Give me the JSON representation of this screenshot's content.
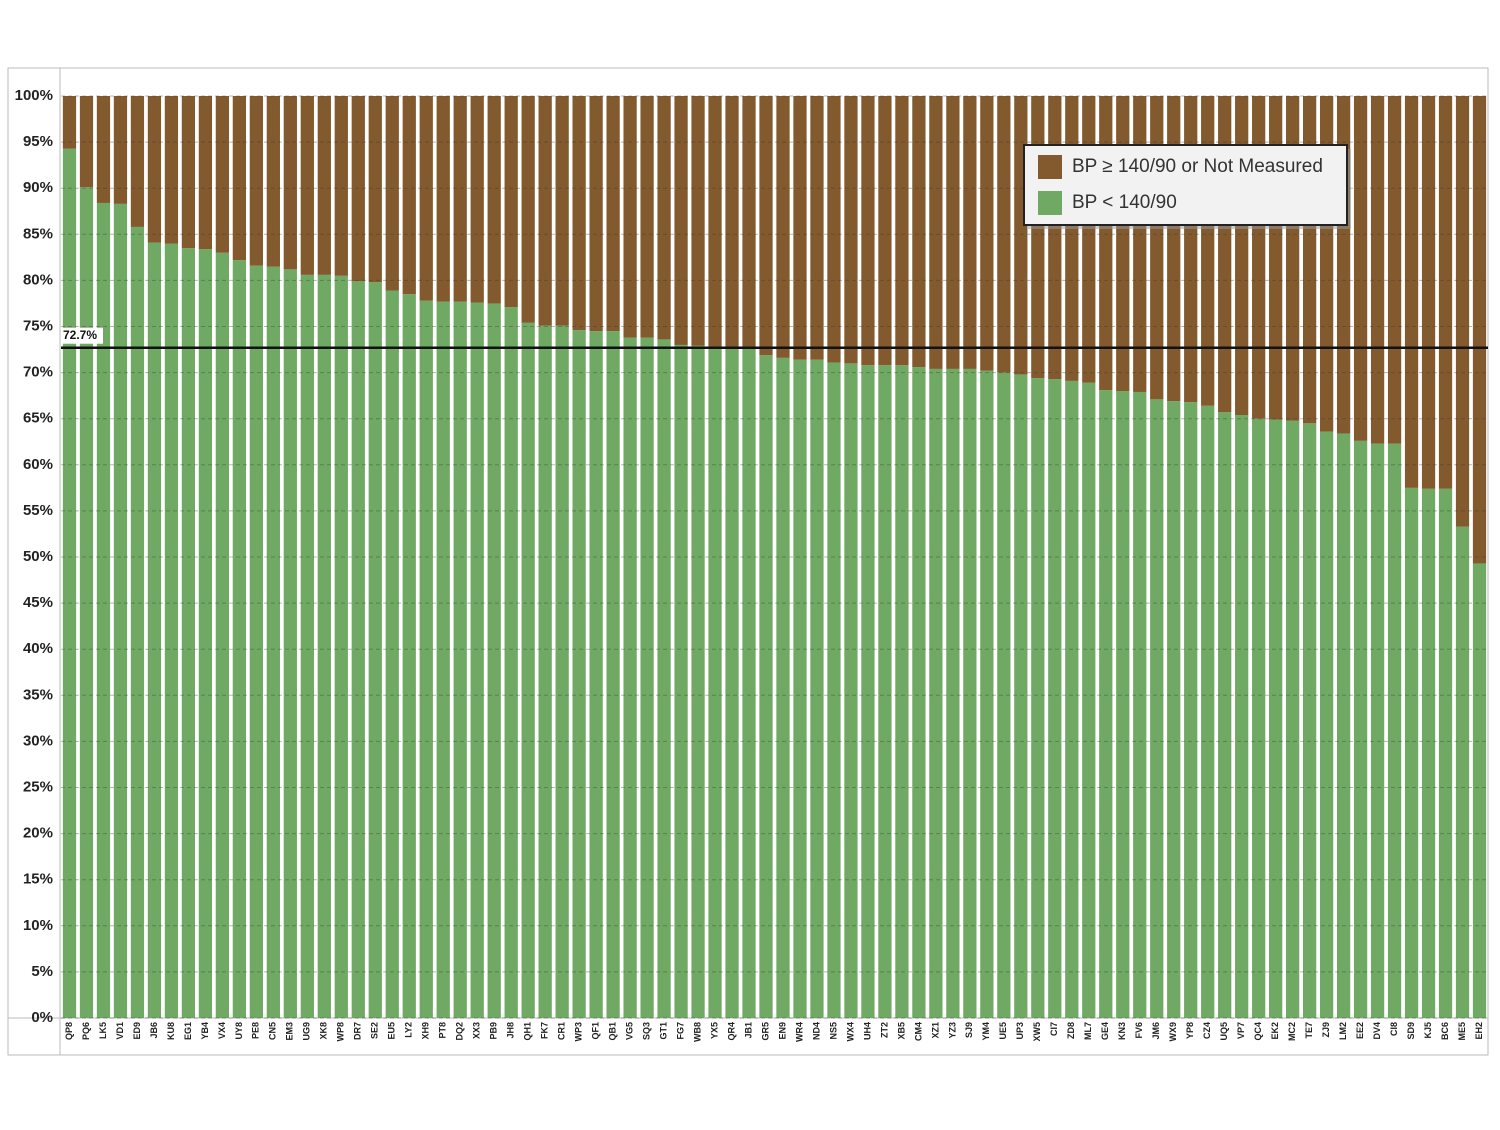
{
  "chart_data": {
    "type": "stacked_bar",
    "categories": [
      "QP8",
      "PQ6",
      "LK5",
      "VD1",
      "ED9",
      "JB6",
      "KU8",
      "EG1",
      "YB4",
      "VX4",
      "UY8",
      "PE8",
      "CN5",
      "EM3",
      "UG9",
      "XK8",
      "WP8",
      "DR7",
      "SE2",
      "EU5",
      "LY2",
      "XH9",
      "PT8",
      "DQ2",
      "XX3",
      "PB9",
      "JH8",
      "QH1",
      "FK7",
      "CR1",
      "WP3",
      "QF1",
      "QB1",
      "VG5",
      "SQ3",
      "GT1",
      "FG7",
      "WB8",
      "YX5",
      "QR4",
      "JB1",
      "GR5",
      "EN9",
      "WR4",
      "ND4",
      "NS5",
      "WX4",
      "UH4",
      "ZT2",
      "XB5",
      "CM4",
      "XZ1",
      "YZ3",
      "SJ9",
      "YM4",
      "UE5",
      "UP3",
      "XW5",
      "CI7",
      "ZD8",
      "ML7",
      "GE4",
      "KN3",
      "FV6",
      "JM6",
      "WX9",
      "YP8",
      "CZ4",
      "UQ5",
      "VP7",
      "QC4",
      "EK2",
      "MC2",
      "TE7",
      "ZJ9",
      "LM2",
      "EE2",
      "DV4",
      "CI8",
      "SD9",
      "KJ5",
      "BC6",
      "ME5",
      "EH2"
    ],
    "series": [
      {
        "name": "BP < 140/90",
        "color": "#70a963",
        "values": [
          94.3,
          90.1,
          88.4,
          88.3,
          85.8,
          84.1,
          84.0,
          83.5,
          83.4,
          83.0,
          82.2,
          81.6,
          81.5,
          81.2,
          80.6,
          80.6,
          80.5,
          79.9,
          79.8,
          78.9,
          78.5,
          77.8,
          77.7,
          77.7,
          77.6,
          77.5,
          77.1,
          75.4,
          75.1,
          75.1,
          74.6,
          74.5,
          74.5,
          73.8,
          73.8,
          73.6,
          73.0,
          72.9,
          72.7,
          72.6,
          72.6,
          71.9,
          71.6,
          71.4,
          71.4,
          71.1,
          71.0,
          70.8,
          70.8,
          70.8,
          70.6,
          70.4,
          70.4,
          70.4,
          70.2,
          70.0,
          69.8,
          69.4,
          69.3,
          69.1,
          68.9,
          68.1,
          68.0,
          67.9,
          67.1,
          66.9,
          66.8,
          66.4,
          65.7,
          65.4,
          65.0,
          64.9,
          64.8,
          64.5,
          63.6,
          63.4,
          62.6,
          62.3,
          62.3,
          57.5,
          57.4,
          57.4,
          53.3,
          49.3
        ]
      },
      {
        "name": "BP ≥ 140/90 or Not Measured",
        "color": "#825a2e",
        "values": [
          5.7,
          9.9,
          11.6,
          11.7,
          14.2,
          15.9,
          16.0,
          16.5,
          16.6,
          17.0,
          17.8,
          18.4,
          18.5,
          18.8,
          19.4,
          19.4,
          19.5,
          20.1,
          20.2,
          21.1,
          21.5,
          22.2,
          22.3,
          22.3,
          22.4,
          22.5,
          22.9,
          24.6,
          24.9,
          24.9,
          25.4,
          25.5,
          25.5,
          26.2,
          26.2,
          26.4,
          27.0,
          27.1,
          27.3,
          27.4,
          27.4,
          28.1,
          28.4,
          28.6,
          28.6,
          28.9,
          29.0,
          29.2,
          29.2,
          29.2,
          29.4,
          29.6,
          29.6,
          29.6,
          29.8,
          30.0,
          30.2,
          30.6,
          30.7,
          30.9,
          31.1,
          31.9,
          32.0,
          32.1,
          32.9,
          33.1,
          33.2,
          33.6,
          34.3,
          34.6,
          35.0,
          35.1,
          35.2,
          35.5,
          36.4,
          36.6,
          37.4,
          37.7,
          37.7,
          42.5,
          42.6,
          42.6,
          46.7,
          50.7
        ]
      }
    ],
    "ylim": [
      0,
      100
    ],
    "yticks": [
      {
        "value": 0,
        "label": "0%"
      },
      {
        "value": 5,
        "label": "5%"
      },
      {
        "value": 10,
        "label": "10%"
      },
      {
        "value": 15,
        "label": "15%"
      },
      {
        "value": 20,
        "label": "20%"
      },
      {
        "value": 25,
        "label": "25%"
      },
      {
        "value": 30,
        "label": "30%"
      },
      {
        "value": 35,
        "label": "35%"
      },
      {
        "value": 40,
        "label": "40%"
      },
      {
        "value": 45,
        "label": "45%"
      },
      {
        "value": 50,
        "label": "50%"
      },
      {
        "value": 55,
        "label": "55%"
      },
      {
        "value": 60,
        "label": "60%"
      },
      {
        "value": 65,
        "label": "65%"
      },
      {
        "value": 70,
        "label": "70%"
      },
      {
        "value": 75,
        "label": "75%"
      },
      {
        "value": 80,
        "label": "80%"
      },
      {
        "value": 85,
        "label": "85%"
      },
      {
        "value": 90,
        "label": "90%"
      },
      {
        "value": 95,
        "label": "95%"
      },
      {
        "value": 100,
        "label": "100%"
      }
    ],
    "reference_line": {
      "value": 72.7,
      "label": "72.7%"
    },
    "grid": true,
    "legend_position": "upper-right"
  }
}
